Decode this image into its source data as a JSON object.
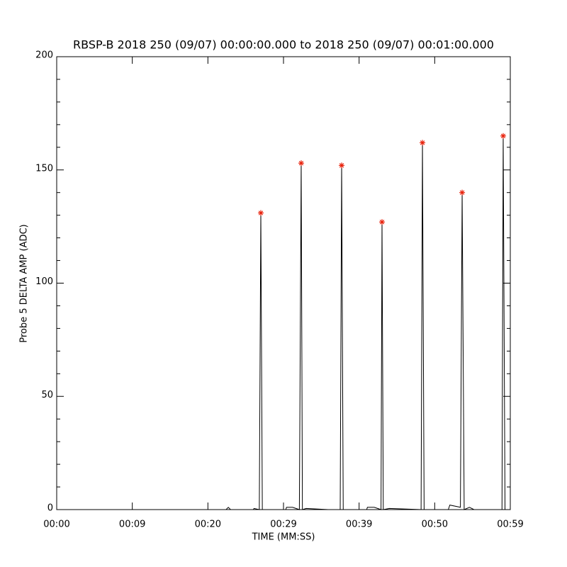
{
  "chart_data": {
    "type": "line",
    "title": "RBSP-B 2018 250 (09/07) 00:00:00.000 to 2018 250 (09/07) 00:01:00.000",
    "x_label": "TIME (MM:SS)",
    "y_label": "Probe 5 DELTA AMP (ADC)",
    "xlim": [
      0,
      60
    ],
    "xticks": [
      {
        "value": 0,
        "label": "00:00"
      },
      {
        "value": 10,
        "label": "00:09"
      },
      {
        "value": 20,
        "label": "00:20"
      },
      {
        "value": 30,
        "label": "00:29"
      },
      {
        "value": 40,
        "label": "00:39"
      },
      {
        "value": 50,
        "label": "00:50"
      },
      {
        "value": 60,
        "label": "00:59"
      }
    ],
    "ylim": [
      0,
      200
    ],
    "yticks": [
      0,
      50,
      100,
      150,
      200
    ],
    "yminorticks": [
      10,
      20,
      30,
      40,
      60,
      70,
      80,
      90,
      110,
      120,
      130,
      140,
      160,
      170,
      180,
      190
    ],
    "series": [
      {
        "color": "#000000",
        "x": [
          0,
          22.4,
          22.7,
          23.0,
          26.0,
          26.1,
          26.8,
          27.0,
          27.2,
          30.3,
          30.4,
          31.2,
          32.1,
          32.34,
          32.5,
          33.0,
          35.9,
          37.5,
          37.69,
          37.9,
          41.0,
          41.1,
          42.0,
          42.9,
          43.03,
          43.2,
          44.0,
          48.2,
          48.38,
          48.6,
          51.8,
          52.0,
          53.4,
          53.63,
          53.9,
          54.6,
          55.2,
          58.9,
          59.06,
          59.3
        ],
        "values": [
          0,
          0,
          1,
          0,
          0,
          0.5,
          0,
          131,
          0,
          0,
          1,
          1,
          0,
          153,
          0,
          0.5,
          0,
          0,
          152,
          0,
          0,
          1,
          1,
          0,
          127,
          0,
          0.5,
          0,
          162,
          0,
          0,
          2,
          1,
          140,
          0,
          1,
          0,
          0,
          165,
          0
        ],
        "marker": "none"
      },
      {
        "color": "#e8220c",
        "x": [
          27.0,
          32.34,
          37.69,
          43.03,
          48.38,
          53.63,
          59.06
        ],
        "values": [
          131,
          153,
          152,
          127,
          162,
          140,
          165
        ],
        "marker": "asterisk"
      }
    ]
  }
}
